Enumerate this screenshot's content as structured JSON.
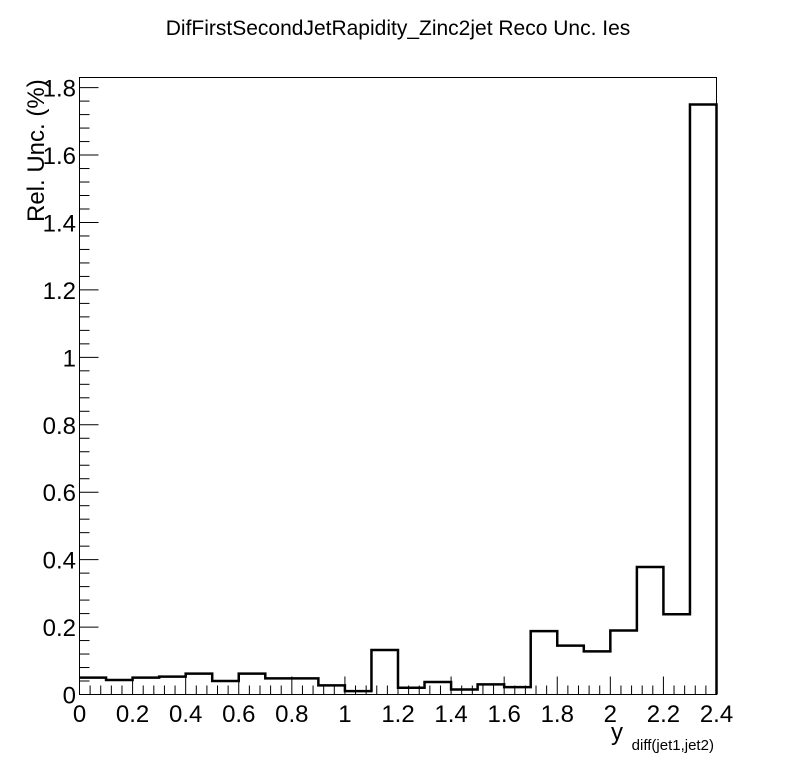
{
  "chart_data": {
    "type": "bar",
    "style": "step-histogram",
    "title": "DifFirstSecondJetRapidity_Zinc2jet Reco Unc. Ies",
    "xlabel": "y",
    "xlabel_subscript": "diff(jet1,jet2)",
    "ylabel": "Rel. Unc. (%)",
    "xlim": [
      0,
      2.4
    ],
    "ylim": [
      0,
      1.83
    ],
    "x_tick_labels": [
      "0",
      "0.2",
      "0.4",
      "0.6",
      "0.8",
      "1",
      "1.2",
      "1.4",
      "1.6",
      "1.8",
      "2",
      "2.2",
      "2.4"
    ],
    "y_tick_labels": [
      "0",
      "0.2",
      "0.4",
      "0.6",
      "0.8",
      "1",
      "1.2",
      "1.4",
      "1.6",
      "1.8"
    ],
    "bin_edges": [
      0,
      0.1,
      0.2,
      0.3,
      0.4,
      0.5,
      0.6,
      0.7,
      0.8,
      0.9,
      1.0,
      1.1,
      1.2,
      1.3,
      1.4,
      1.5,
      1.6,
      1.7,
      1.8,
      1.9,
      2.0,
      2.1,
      2.2,
      2.3,
      2.4
    ],
    "values": [
      0.05,
      0.043,
      0.05,
      0.053,
      0.062,
      0.04,
      0.062,
      0.048,
      0.048,
      0.027,
      0.01,
      0.132,
      0.02,
      0.037,
      0.015,
      0.03,
      0.022,
      0.188,
      0.145,
      0.128,
      0.19,
      0.378,
      0.238,
      1.75
    ],
    "grid": false,
    "legend": "none",
    "line_color": "#000000"
  }
}
